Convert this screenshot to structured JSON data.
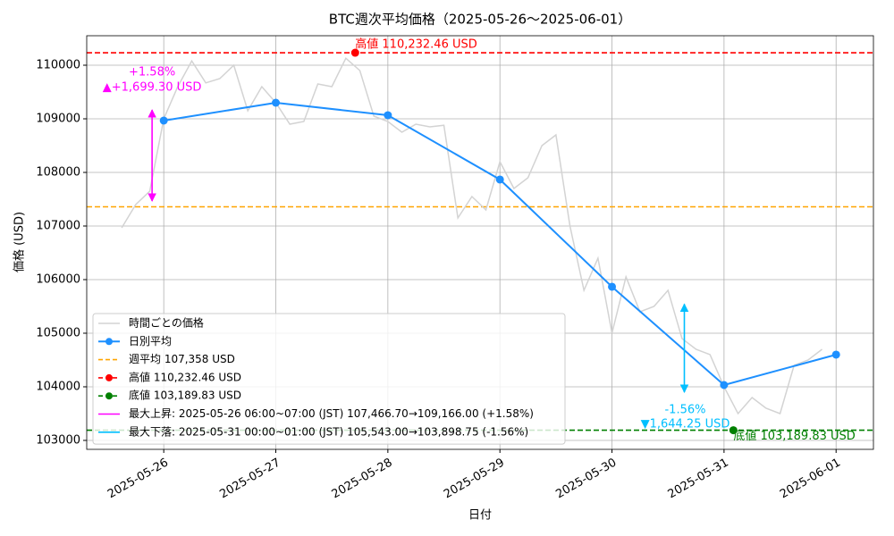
{
  "chart_data": {
    "type": "line",
    "title": "BTC週次平均価格（2025-05-26～2025-06-01）",
    "xlabel": "日付",
    "ylabel": "価格 (USD)",
    "xlim": [
      "2025-05-25T07:30",
      "2025-06-01T08:00"
    ],
    "xticks": [
      "2025-05-26",
      "2025-05-27",
      "2025-05-28",
      "2025-05-29",
      "2025-05-30",
      "2025-05-31",
      "2025-06-01"
    ],
    "ylim": [
      102833,
      110550
    ],
    "yticks": [
      103000,
      104000,
      105000,
      106000,
      107000,
      108000,
      109000,
      110000
    ],
    "grid": true,
    "legend": "lower left",
    "series": [
      {
        "name": "時間ごとの価格",
        "color": "#d3d3d3",
        "marker": false,
        "x": [
          "2025-05-25T15:00",
          "2025-05-25T18:00",
          "2025-05-25T21:00",
          "2025-05-26T00:00",
          "2025-05-26T03:00",
          "2025-05-26T06:00",
          "2025-05-26T09:00",
          "2025-05-26T12:00",
          "2025-05-26T15:00",
          "2025-05-26T18:00",
          "2025-05-26T21:00",
          "2025-05-27T00:00",
          "2025-05-27T03:00",
          "2025-05-27T06:00",
          "2025-05-27T09:00",
          "2025-05-27T12:00",
          "2025-05-27T15:00",
          "2025-05-27T18:00",
          "2025-05-27T21:00",
          "2025-05-28T00:00",
          "2025-05-28T03:00",
          "2025-05-28T06:00",
          "2025-05-28T09:00",
          "2025-05-28T12:00",
          "2025-05-28T15:00",
          "2025-05-28T18:00",
          "2025-05-28T21:00",
          "2025-05-29T00:00",
          "2025-05-29T03:00",
          "2025-05-29T06:00",
          "2025-05-29T09:00",
          "2025-05-29T12:00",
          "2025-05-29T15:00",
          "2025-05-29T18:00",
          "2025-05-29T21:00",
          "2025-05-30T00:00",
          "2025-05-30T03:00",
          "2025-05-30T06:00",
          "2025-05-30T09:00",
          "2025-05-30T12:00",
          "2025-05-30T15:00",
          "2025-05-30T18:00",
          "2025-05-30T21:00",
          "2025-05-31T00:00",
          "2025-05-31T03:00",
          "2025-05-31T06:00",
          "2025-05-31T09:00",
          "2025-05-31T12:00",
          "2025-05-31T15:00",
          "2025-05-31T18:00",
          "2025-05-31T21:00"
        ],
        "values": [
          106967,
          107400,
          107650,
          109000,
          109600,
          110080,
          109670,
          109750,
          110000,
          109150,
          109600,
          109300,
          108900,
          108950,
          109650,
          109600,
          110130,
          109900,
          109050,
          108950,
          108750,
          108900,
          108850,
          108880,
          107150,
          107550,
          107300,
          108200,
          107700,
          107900,
          108500,
          108700,
          107000,
          105800,
          106400,
          105000,
          106050,
          105400,
          105500,
          105800,
          104900,
          104700,
          104600,
          104000,
          103500,
          103800,
          103600,
          103500,
          104400,
          104500,
          104700
        ]
      },
      {
        "name": "日別平均",
        "color": "#1e90ff",
        "marker": true,
        "x": [
          "2025-05-26",
          "2025-05-27",
          "2025-05-28",
          "2025-05-29",
          "2025-05-30",
          "2025-05-31",
          "2025-06-01"
        ],
        "values": [
          108967,
          109300,
          109067,
          107867,
          105867,
          104033,
          104600
        ]
      }
    ],
    "hlines": [
      {
        "name": "週平均 107,358 USD",
        "value": 107358,
        "color": "#ffa500"
      },
      {
        "name": "高値 110,232.46 USD",
        "value": 110232.46,
        "color": "#ff0000",
        "x": "2025-05-27T17:00"
      },
      {
        "name": "底値 103,189.83 USD",
        "value": 103189.83,
        "color": "#008000",
        "x": "2025-05-31T02:00"
      }
    ],
    "moves": [
      {
        "name": "最大上昇: 2025-05-26 06:00~07:00 (JST)  107,466.70→109,166.00 (+1.58%)",
        "color": "#ff00ff",
        "x": "2025-05-25T21:30",
        "from": 107466.7,
        "to": 109166.0,
        "labels": [
          "+1.58%",
          "▲+1,699.30 USD"
        ]
      },
      {
        "name": "最大下落: 2025-05-31 00:00~01:00 (JST)  105,543.00→103,898.75 (-1.56%)",
        "color": "#00bfff",
        "x": "2025-05-30T15:30",
        "from": 105543.0,
        "to": 103898.75,
        "labels": [
          "-1.56%",
          "▼1,644.25 USD"
        ]
      }
    ]
  }
}
